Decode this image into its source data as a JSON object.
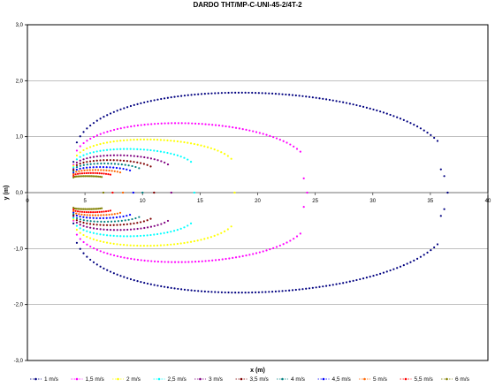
{
  "chart_data": {
    "type": "scatter",
    "title": "DARDO THT/MP-C-UNI-45-2/4T-2",
    "xlabel": "x (m)",
    "ylabel": "y (m)",
    "xlim": [
      0,
      40
    ],
    "ylim": [
      -3.0,
      3.0
    ],
    "x_ticks": [
      "0",
      "5",
      "10",
      "15",
      "20",
      "25",
      "30",
      "35",
      "40"
    ],
    "y_ticks": [
      "3,0",
      "2,0",
      "1,0",
      "0,0",
      "-1,0",
      "-2,0",
      "-3,0"
    ],
    "grid": "horizontal",
    "legend_position": "bottom",
    "series": [
      {
        "name": "1 m/s",
        "color": "#000080",
        "x_min": 4.0,
        "x_max": 36.5,
        "y_max": 2.05,
        "y_start": 0.55
      },
      {
        "name": "1,5 m/s",
        "color": "#ff00ff",
        "x_min": 4.0,
        "x_max": 24.3,
        "y_max": 1.4,
        "y_start": 0.5
      },
      {
        "name": "2 m/s",
        "color": "#ffff00",
        "x_min": 4.0,
        "x_max": 18.0,
        "y_max": 1.05,
        "y_start": 0.48
      },
      {
        "name": "2,5 m/s",
        "color": "#00ffff",
        "x_min": 4.0,
        "x_max": 14.5,
        "y_max": 0.85,
        "y_start": 0.45
      },
      {
        "name": "3 m/s",
        "color": "#800080",
        "x_min": 4.0,
        "x_max": 12.5,
        "y_max": 0.72,
        "y_start": 0.42
      },
      {
        "name": "3,5 m/s",
        "color": "#800000",
        "x_min": 4.0,
        "x_max": 11.0,
        "y_max": 0.62,
        "y_start": 0.4
      },
      {
        "name": "4 m/s",
        "color": "#008080",
        "x_min": 4.0,
        "x_max": 10.0,
        "y_max": 0.55,
        "y_start": 0.38
      },
      {
        "name": "4,5 m/s",
        "color": "#0000ff",
        "x_min": 4.0,
        "x_max": 9.2,
        "y_max": 0.48,
        "y_start": 0.35
      },
      {
        "name": "5 m/s",
        "color": "#ff6600",
        "x_min": 4.0,
        "x_max": 8.3,
        "y_max": 0.42,
        "y_start": 0.33
      },
      {
        "name": "5,5 m/s",
        "color": "#ff0000",
        "x_min": 4.0,
        "x_max": 7.4,
        "y_max": 0.36,
        "y_start": 0.3
      },
      {
        "name": "6 m/s",
        "color": "#808000",
        "x_min": 4.0,
        "x_max": 6.6,
        "y_max": 0.3,
        "y_start": 0.27
      }
    ]
  }
}
